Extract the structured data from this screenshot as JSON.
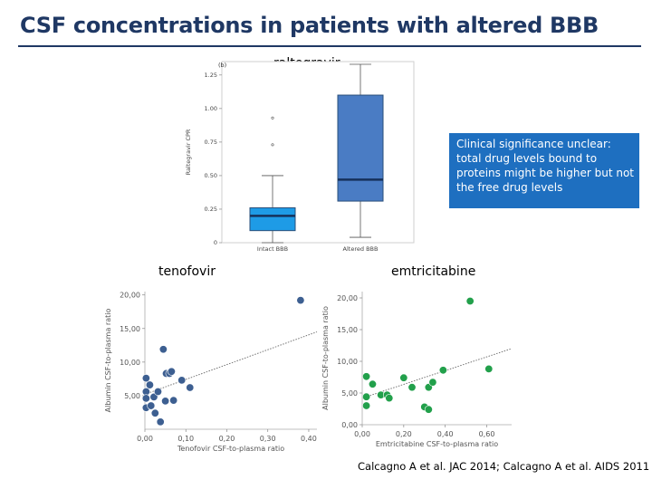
{
  "slide": {
    "title": "CSF concentrations in patients with altered BBB",
    "panel_b_label": "(b)",
    "note": "Clinical significance unclear: total drug levels bound to proteins might be higher but not the free drug levels",
    "citation": "Calcagno A et al. JAC 2014; Calcagno A et al. AIDS 2011"
  },
  "colors": {
    "title": "#1f3864",
    "note_bg": "#1e6fc0",
    "blue_point": "#3d5f91",
    "green_point": "#22a04b",
    "box_intact": "#1e9be6",
    "box_altered": "#4a7cc4"
  },
  "chart_data": [
    {
      "type": "box",
      "title": "raltegravir",
      "ylabel": "Raltegravir CPR",
      "ylim": [
        0,
        1.35
      ],
      "yticks": [
        "0",
        "0.25",
        "0.50",
        "0.75",
        "1.00",
        "1.25"
      ],
      "categories": [
        "Intact BBB",
        "Altered BBB"
      ],
      "boxes": [
        {
          "name": "Intact BBB",
          "min": 0.0,
          "q1": 0.09,
          "median": 0.2,
          "q3": 0.26,
          "max": 0.5,
          "outliers": [
            0.73,
            0.93
          ]
        },
        {
          "name": "Altered BBB",
          "min": 0.04,
          "q1": 0.31,
          "median": 0.47,
          "q3": 1.1,
          "max": 1.33,
          "outliers": []
        }
      ]
    },
    {
      "type": "scatter",
      "title": "tenofovir",
      "xlabel": "Tenofovir CSF-to-plasma ratio",
      "ylabel": "Albumin CSF-to-plasma ratio",
      "xlim": [
        0,
        0.42
      ],
      "ylim": [
        0,
        20.5
      ],
      "xticks": [
        "0,00",
        "0,10",
        "0,20",
        "0,30",
        "0,40"
      ],
      "yticks": [
        "5,00",
        "10,00",
        "15,00",
        "20,00"
      ],
      "trend": [
        [
          0,
          5.2
        ],
        [
          0.42,
          14.5
        ]
      ],
      "points": [
        [
          0.003,
          7.6
        ],
        [
          0.003,
          5.6
        ],
        [
          0.003,
          4.6
        ],
        [
          0.003,
          3.2
        ],
        [
          0.012,
          6.6
        ],
        [
          0.015,
          3.5
        ],
        [
          0.022,
          4.8
        ],
        [
          0.025,
          2.4
        ],
        [
          0.032,
          5.6
        ],
        [
          0.038,
          1.1
        ],
        [
          0.045,
          11.9
        ],
        [
          0.05,
          4.2
        ],
        [
          0.052,
          8.3
        ],
        [
          0.06,
          8.3
        ],
        [
          0.065,
          8.6
        ],
        [
          0.07,
          4.3
        ],
        [
          0.09,
          7.3
        ],
        [
          0.11,
          6.2
        ],
        [
          0.38,
          19.2
        ]
      ]
    },
    {
      "type": "scatter",
      "title": "emtricitabine",
      "xlabel": "Emtricitabine CSF-to-plasma ratio",
      "ylabel": "Albumin CSF-to-plasma ratio",
      "xlim": [
        0,
        0.72
      ],
      "ylim": [
        0,
        21
      ],
      "xticks": [
        "0,00",
        "0,20",
        "0,40",
        "0,60"
      ],
      "yticks": [
        "0,00",
        "5,00",
        "10,00",
        "15,00",
        "20,00"
      ],
      "trend": [
        [
          0,
          4.2
        ],
        [
          0.72,
          12.0
        ]
      ],
      "points": [
        [
          0.02,
          7.6
        ],
        [
          0.02,
          4.4
        ],
        [
          0.02,
          3.0
        ],
        [
          0.05,
          6.4
        ],
        [
          0.09,
          4.7
        ],
        [
          0.12,
          4.7
        ],
        [
          0.13,
          4.2
        ],
        [
          0.2,
          7.4
        ],
        [
          0.24,
          5.9
        ],
        [
          0.3,
          2.8
        ],
        [
          0.32,
          2.4
        ],
        [
          0.32,
          5.9
        ],
        [
          0.34,
          6.7
        ],
        [
          0.39,
          8.6
        ],
        [
          0.52,
          19.5
        ],
        [
          0.61,
          8.8
        ]
      ]
    }
  ]
}
